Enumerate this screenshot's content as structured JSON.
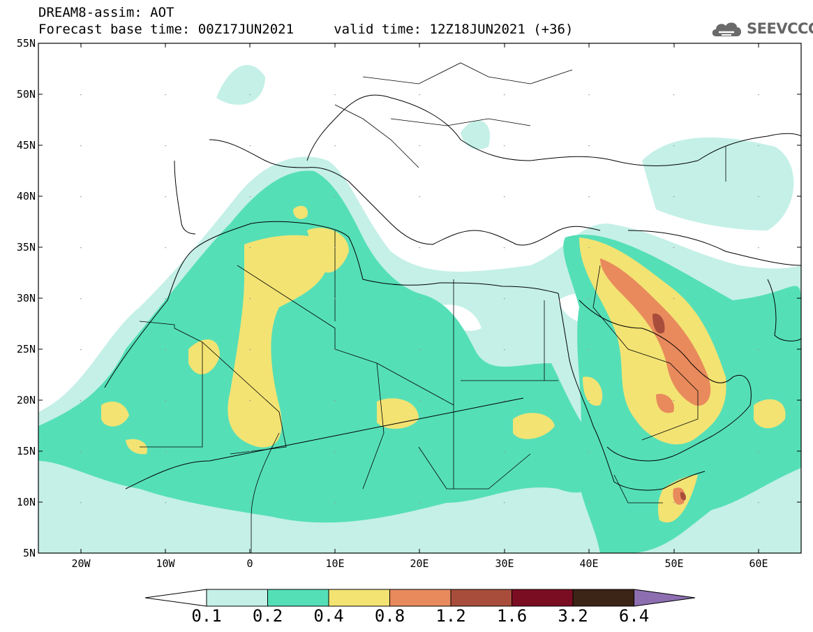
{
  "header": {
    "line1": "DREAM8-assim: AOT",
    "line2": "Forecast base time: 00Z17JUN2021     valid time: 12Z18JUN2021 (+36)"
  },
  "logo": {
    "text": "SEEVCCC",
    "icon": "cloud-icon"
  },
  "map": {
    "lat_labels": [
      "55N",
      "50N",
      "45N",
      "40N",
      "35N",
      "30N",
      "25N",
      "20N",
      "15N",
      "10N",
      "5N"
    ],
    "lon_labels": [
      "20W",
      "10W",
      "0",
      "10E",
      "20E",
      "30E",
      "40E",
      "50E",
      "60E"
    ],
    "lat_range": [
      5,
      55
    ],
    "lon_range": [
      -25,
      65
    ],
    "variable": "AOT"
  },
  "colorbar": {
    "labels": [
      "0.1",
      "0.2",
      "0.4",
      "0.8",
      "1.2",
      "1.6",
      "3.2",
      "6.4"
    ],
    "colors": [
      "#ffffff",
      "#c4f0e7",
      "#55dfb7",
      "#f3e373",
      "#e88a5c",
      "#a84d3b",
      "#7b0d22",
      "#3c2417",
      "#8d6fb1"
    ]
  }
}
